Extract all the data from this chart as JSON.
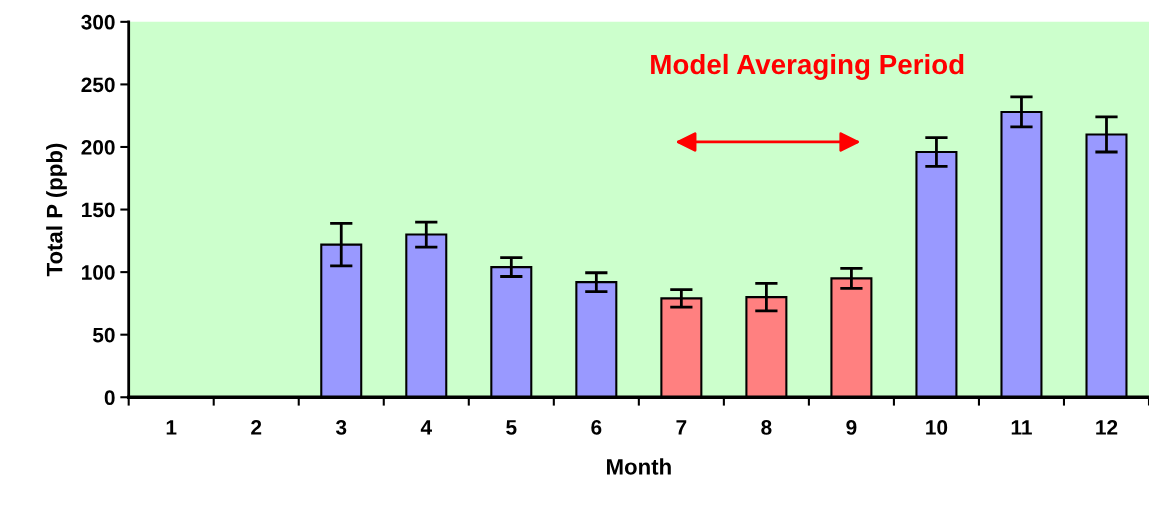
{
  "chart_data": {
    "type": "bar",
    "xlabel": "Month",
    "ylabel": "Total P (ppb)",
    "categories": [
      "1",
      "2",
      "3",
      "4",
      "5",
      "6",
      "7",
      "8",
      "9",
      "10",
      "11",
      "12"
    ],
    "values": [
      null,
      null,
      122,
      130,
      104,
      92,
      79,
      80,
      95,
      196,
      228,
      210
    ],
    "errors": [
      null,
      null,
      17,
      10,
      7.5,
      7.5,
      7,
      11,
      8,
      11.5,
      12,
      14
    ],
    "colors": [
      "#9999ff",
      "#9999ff",
      "#9999ff",
      "#9999ff",
      "#9999ff",
      "#9999ff",
      "#ff8080",
      "#ff8080",
      "#ff8080",
      "#9999ff",
      "#9999ff",
      "#9999ff"
    ],
    "ylim": [
      0,
      300
    ],
    "yticks": [
      0,
      50,
      100,
      150,
      200,
      250,
      300
    ],
    "grid": false,
    "annotations": [
      "Model Averaging Period"
    ]
  }
}
